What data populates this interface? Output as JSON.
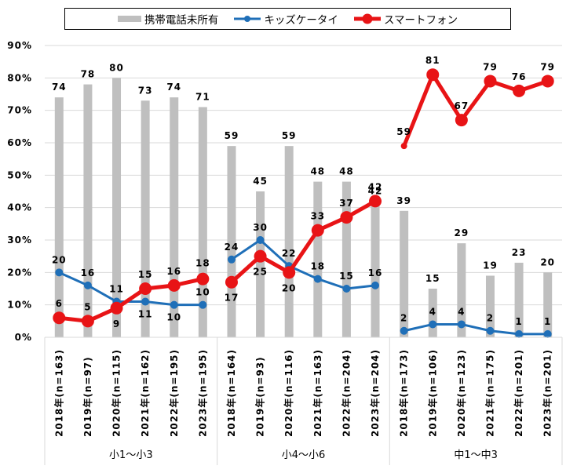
{
  "chart_data": {
    "type": "bar",
    "title": "",
    "xlabel": "",
    "ylabel": "",
    "ylim": [
      0,
      90
    ],
    "yticks": [
      0,
      10,
      20,
      30,
      40,
      50,
      60,
      70,
      80,
      90
    ],
    "ytick_suffix": "%",
    "grid": true,
    "legend_position": "top",
    "groups": [
      {
        "label": "小1～小3",
        "categories": [
          "2018年(n=163)",
          "2019年(n=97)",
          "2020年(n=115)",
          "2021年(n=162)",
          "2022年(n=195)",
          "2023年(n=195)"
        ]
      },
      {
        "label": "小4～小6",
        "categories": [
          "2018年(n=164)",
          "2019年(n=93)",
          "2020年(n=116)",
          "2021年(n=163)",
          "2022年(n=204)",
          "2023年(n=204)"
        ]
      },
      {
        "label": "中1～中3",
        "categories": [
          "2018年(n=173)",
          "2019年(n=106)",
          "2020年(n=123)",
          "2021年(n=175)",
          "2022年(n=201)",
          "2023年(n=201)"
        ]
      }
    ],
    "series": [
      {
        "name": "携帯電話未所有",
        "type": "bar",
        "color": "#bfbfbf",
        "values": [
          [
            74,
            78,
            80,
            73,
            74,
            71
          ],
          [
            59,
            45,
            59,
            48,
            48,
            42
          ],
          [
            39,
            15,
            29,
            19,
            23,
            20
          ]
        ]
      },
      {
        "name": "キッズケータイ",
        "type": "line",
        "color": "#1f6fb8",
        "values": [
          [
            20,
            16,
            11,
            11,
            10,
            10
          ],
          [
            24,
            30,
            22,
            18,
            15,
            16
          ],
          [
            2,
            4,
            4,
            2,
            1,
            1
          ]
        ]
      },
      {
        "name": "スマートフォン",
        "type": "line",
        "color": "#e81416",
        "values": [
          [
            6,
            5,
            9,
            15,
            16,
            18
          ],
          [
            17,
            25,
            20,
            33,
            37,
            42
          ],
          [
            59,
            81,
            67,
            79,
            76,
            79
          ]
        ]
      }
    ]
  }
}
